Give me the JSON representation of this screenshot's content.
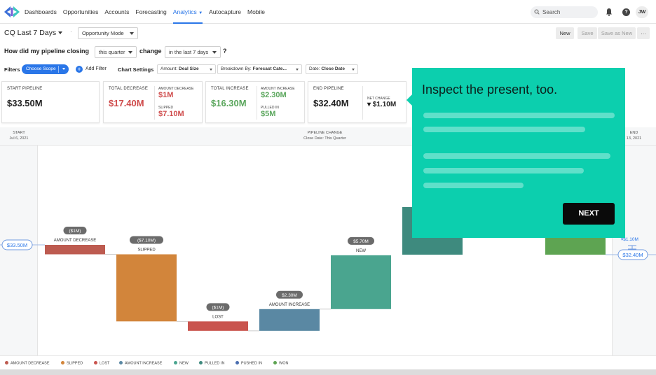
{
  "nav": {
    "items": [
      "Dashboards",
      "Opportunities",
      "Accounts",
      "Forecasting",
      "Analytics",
      "Autocapture",
      "Mobile"
    ],
    "active": "Analytics",
    "search_placeholder": "Search",
    "help_glyph": "?",
    "avatar_initials": "JW",
    "icons": [
      "logo-icon",
      "search-icon",
      "bell-icon",
      "help-icon"
    ]
  },
  "report": {
    "title": "CQ Last 7 Days",
    "dot": "·",
    "mode": "Opportunity Mode",
    "btn_new": "New",
    "btn_save": "Save",
    "btn_save_as_new": "Save as New",
    "btn_more": "···",
    "question": {
      "part1": "How did my pipeline closing",
      "period": "this quarter",
      "part2": "change",
      "range": "in the last 7 days",
      "mark": "?"
    }
  },
  "filters": {
    "label": "Filters",
    "scope": "Choose Scope",
    "add_glyph": "+",
    "add": "Add Filter",
    "chart_settings": "Chart Settings",
    "amount_label": "Amount:",
    "amount_value": "Deal Size",
    "breakdown_label": "Breakdown By:",
    "breakdown_value": "Forecast Cate...",
    "date_label": "Date:",
    "date_value": "Close Date"
  },
  "cards": {
    "start_label": "START PIPELINE",
    "start_value": "$33.50M",
    "decrease_label": "TOTAL DECREASE",
    "decrease_value": "$17.40M",
    "amount_decrease_label": "AMOUNT DECREASE",
    "amount_decrease_value": "$1M",
    "slipped_label": "SLIPPED",
    "slipped_value": "$7.10M",
    "increase_label": "TOTAL INCREASE",
    "increase_value": "$16.30M",
    "amount_increase_label": "AMOUNT INCREASE",
    "amount_increase_value": "$2.30M",
    "pulled_in_label": "PULLED IN",
    "pulled_in_value": "$5M",
    "end_label": "END PIPELINE",
    "end_value": "$32.40M",
    "net_change_label": "NET CHANGE",
    "net_change_value": "▾ $1.10M"
  },
  "chart": {
    "start_label": "START",
    "start_date": "Jul 6, 2021",
    "middle_label": "PIPELINE CHANGE",
    "middle_sub": "Close Date: This Quarter",
    "end_label": "END",
    "end_date_partial": "13, 2021",
    "start_badge": "$33.50M",
    "end_badge": "$32.40M",
    "end_change": "▾$1.10M"
  },
  "chart_data": {
    "type": "bar",
    "subtype": "waterfall",
    "start": 33.5,
    "end": 32.4,
    "unit": "$M",
    "steps": [
      {
        "category": "AMOUNT DECREASE",
        "label": "($1M)",
        "value": -1.0,
        "color": "#bd5b50"
      },
      {
        "category": "SLIPPED",
        "label": "($7.10M)",
        "value": -7.1,
        "color": "#d2853b"
      },
      {
        "category": "LOST",
        "label": "($1M)",
        "value": -1.0,
        "color": "#c9544e"
      },
      {
        "category": "AMOUNT INCREASE",
        "label": "$2.30M",
        "value": 2.3,
        "color": "#5a88a3"
      },
      {
        "category": "NEW",
        "label": "$5.70M",
        "value": 5.7,
        "color": "#4aa58f"
      },
      {
        "category": "PULLED IN",
        "label": "",
        "value": null,
        "color": "#3e8a7e"
      },
      {
        "category": "PUSHED IN",
        "label": "",
        "value": null,
        "color": "#4a6eb0"
      },
      {
        "category": "WON",
        "label": "",
        "value": null,
        "color": "#5ea452"
      }
    ],
    "legend": [
      "AMOUNT DECREASE",
      "SLIPPED",
      "LOST",
      "AMOUNT INCREASE",
      "NEW",
      "PULLED IN",
      "PUSHED IN",
      "WON"
    ],
    "legend_position": "bottom",
    "grid": false
  },
  "popup": {
    "title": "Inspect the present, too.",
    "next": "NEXT",
    "color": "#0ccfae"
  }
}
